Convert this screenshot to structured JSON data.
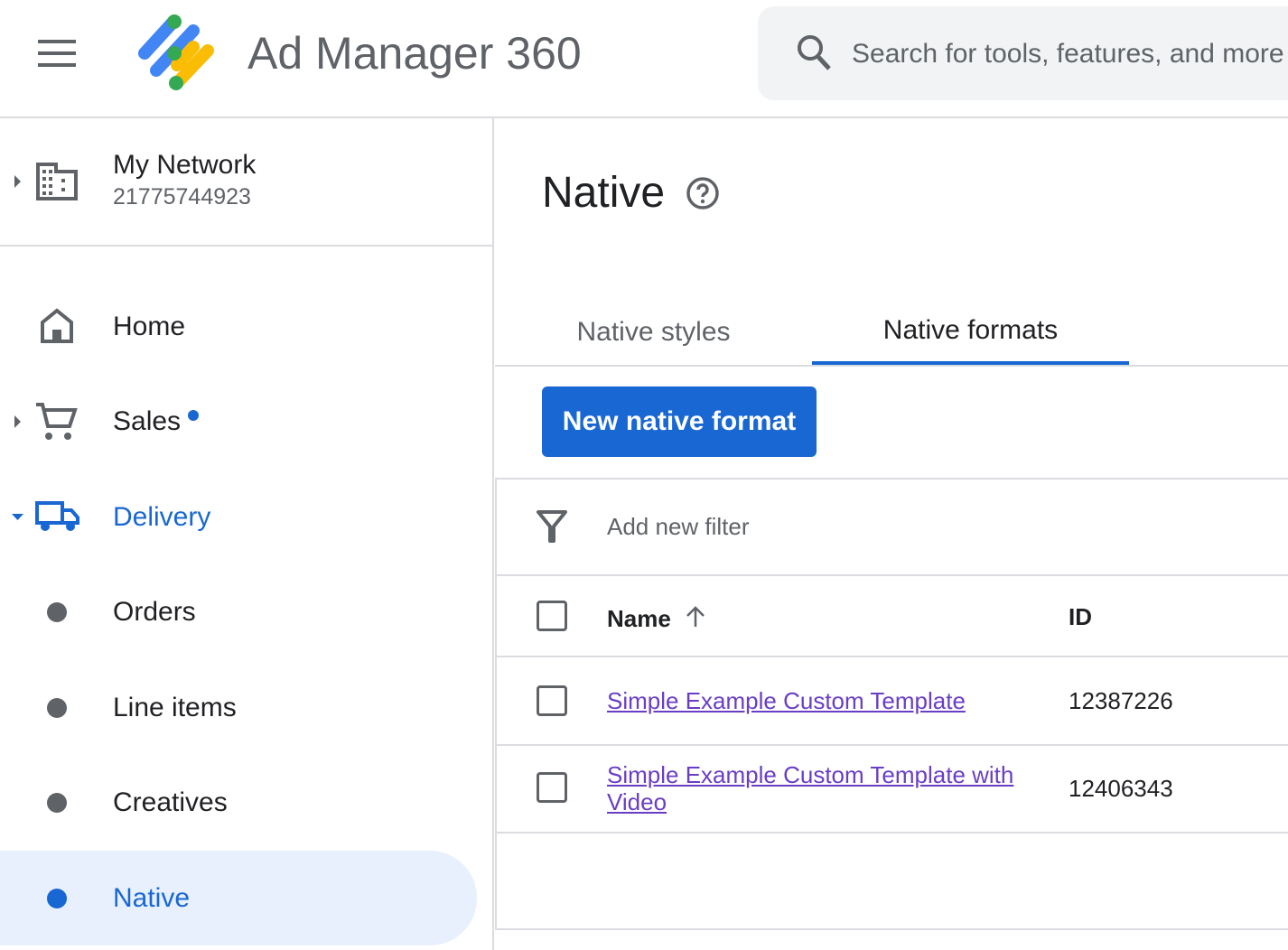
{
  "header": {
    "app_title": "Ad Manager 360",
    "search_placeholder": "Search for tools, features, and more"
  },
  "network": {
    "name": "My Network",
    "id": "21775744923"
  },
  "sidebar": {
    "items": [
      {
        "label": "Home",
        "icon": "home-icon"
      },
      {
        "label": "Sales",
        "icon": "cart-icon",
        "badge": true
      },
      {
        "label": "Delivery",
        "icon": "truck-icon",
        "expanded": true
      },
      {
        "label": "Orders"
      },
      {
        "label": "Line items"
      },
      {
        "label": "Creatives"
      },
      {
        "label": "Native",
        "active": true
      }
    ]
  },
  "main": {
    "title": "Native",
    "tabs": [
      {
        "label": "Native styles"
      },
      {
        "label": "Native formats",
        "active": true
      }
    ],
    "new_button": "New native format",
    "filter_label": "Add new filter",
    "table": {
      "columns": [
        "Name",
        "ID"
      ],
      "rows": [
        {
          "name": "Simple Example Custom Template",
          "id": "12387226"
        },
        {
          "name": "Simple Example Custom Template with Video",
          "id": "12406343"
        }
      ]
    }
  },
  "colors": {
    "accent": "#1967d2",
    "link_visited": "#6a3ec4",
    "active_bg": "#e8f0fe"
  }
}
